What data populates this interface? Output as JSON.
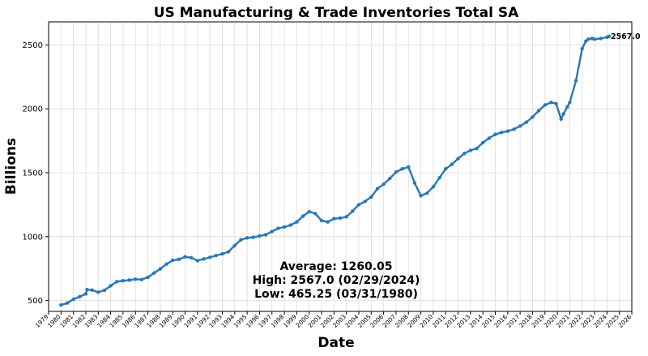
{
  "chart_data": {
    "type": "line",
    "title": "US Manufacturing & Trade Inventories Total SA",
    "xlabel": "Date",
    "ylabel": "Billions",
    "xlim": [
      1979,
      2026
    ],
    "ylim": [
      415,
      2680
    ],
    "yticks": [
      500,
      1000,
      1500,
      2000,
      2500
    ],
    "xticks": [
      "1979",
      "1980",
      "1981",
      "1982",
      "1983",
      "1984",
      "1985",
      "1986",
      "1987",
      "1988",
      "1989",
      "1990",
      "1991",
      "1992",
      "1993",
      "1994",
      "1995",
      "1996",
      "1997",
      "1998",
      "1999",
      "2000",
      "2001",
      "2002",
      "2003",
      "2004",
      "2005",
      "2006",
      "2007",
      "2008",
      "2009",
      "2010",
      "2011",
      "2012",
      "2013",
      "2014",
      "2015",
      "2016",
      "2017",
      "2018",
      "2019",
      "2020",
      "2021",
      "2022",
      "2023",
      "2024",
      "2025",
      "2026"
    ],
    "grid": true,
    "line_color": "#2878b5",
    "series": [
      {
        "x": [
          1980.0,
          1980.5,
          1981.0,
          1981.5,
          1982.0,
          1982.1,
          1982.5,
          1983.0,
          1983.5,
          1984.0,
          1984.5,
          1985.0,
          1985.5,
          1986.0,
          1986.5,
          1987.0,
          1987.5,
          1988.0,
          1988.5,
          1989.0,
          1989.5,
          1990.0,
          1990.5,
          1991.0,
          1991.5,
          1992.0,
          1992.5,
          1993.0,
          1993.5,
          1994.0,
          1994.5,
          1995.0,
          1995.5,
          1996.0,
          1996.5,
          1997.0,
          1997.5,
          1998.0,
          1998.5,
          1999.0,
          1999.5,
          2000.0,
          2000.5,
          2001.0,
          2001.5,
          2002.0,
          2002.5,
          2003.0,
          2003.5,
          2004.0,
          2004.5,
          2005.0,
          2005.5,
          2006.0,
          2006.5,
          2007.0,
          2007.5,
          2008.0,
          2008.5,
          2009.0,
          2009.5,
          2010.0,
          2010.5,
          2011.0,
          2011.5,
          2012.0,
          2012.5,
          2013.0,
          2013.5,
          2014.0,
          2014.5,
          2015.0,
          2015.5,
          2016.0,
          2016.5,
          2017.0,
          2017.5,
          2018.0,
          2018.5,
          2019.0,
          2019.5,
          2019.9,
          2020.3,
          2020.5,
          2020.8,
          2021.0,
          2021.5,
          2022.0,
          2022.3,
          2022.5,
          2022.8,
          2023.0,
          2023.5,
          2024.0,
          2024.17
        ],
        "y": [
          465.25,
          480,
          510,
          530,
          552,
          585,
          582,
          565,
          580,
          615,
          648,
          655,
          660,
          667,
          664,
          682,
          715,
          748,
          785,
          815,
          822,
          842,
          835,
          812,
          825,
          838,
          852,
          865,
          882,
          930,
          975,
          990,
          995,
          1005,
          1015,
          1040,
          1065,
          1075,
          1090,
          1115,
          1160,
          1195,
          1180,
          1125,
          1115,
          1140,
          1145,
          1155,
          1200,
          1250,
          1275,
          1310,
          1375,
          1410,
          1455,
          1505,
          1530,
          1545,
          1420,
          1320,
          1340,
          1390,
          1460,
          1530,
          1565,
          1610,
          1650,
          1675,
          1690,
          1735,
          1770,
          1800,
          1815,
          1825,
          1840,
          1865,
          1895,
          1935,
          1985,
          2030,
          2050,
          2040,
          1920,
          1960,
          2015,
          2050,
          2220,
          2470,
          2530,
          2545,
          2550,
          2545,
          2550,
          2560,
          2567.0
        ]
      }
    ],
    "annotations": {
      "end_label": "2567.0",
      "average": "Average: 1260.05",
      "high": "High: 2567.0 (02/29/2024)",
      "low": "Low: 465.25 (03/31/1980)"
    }
  }
}
